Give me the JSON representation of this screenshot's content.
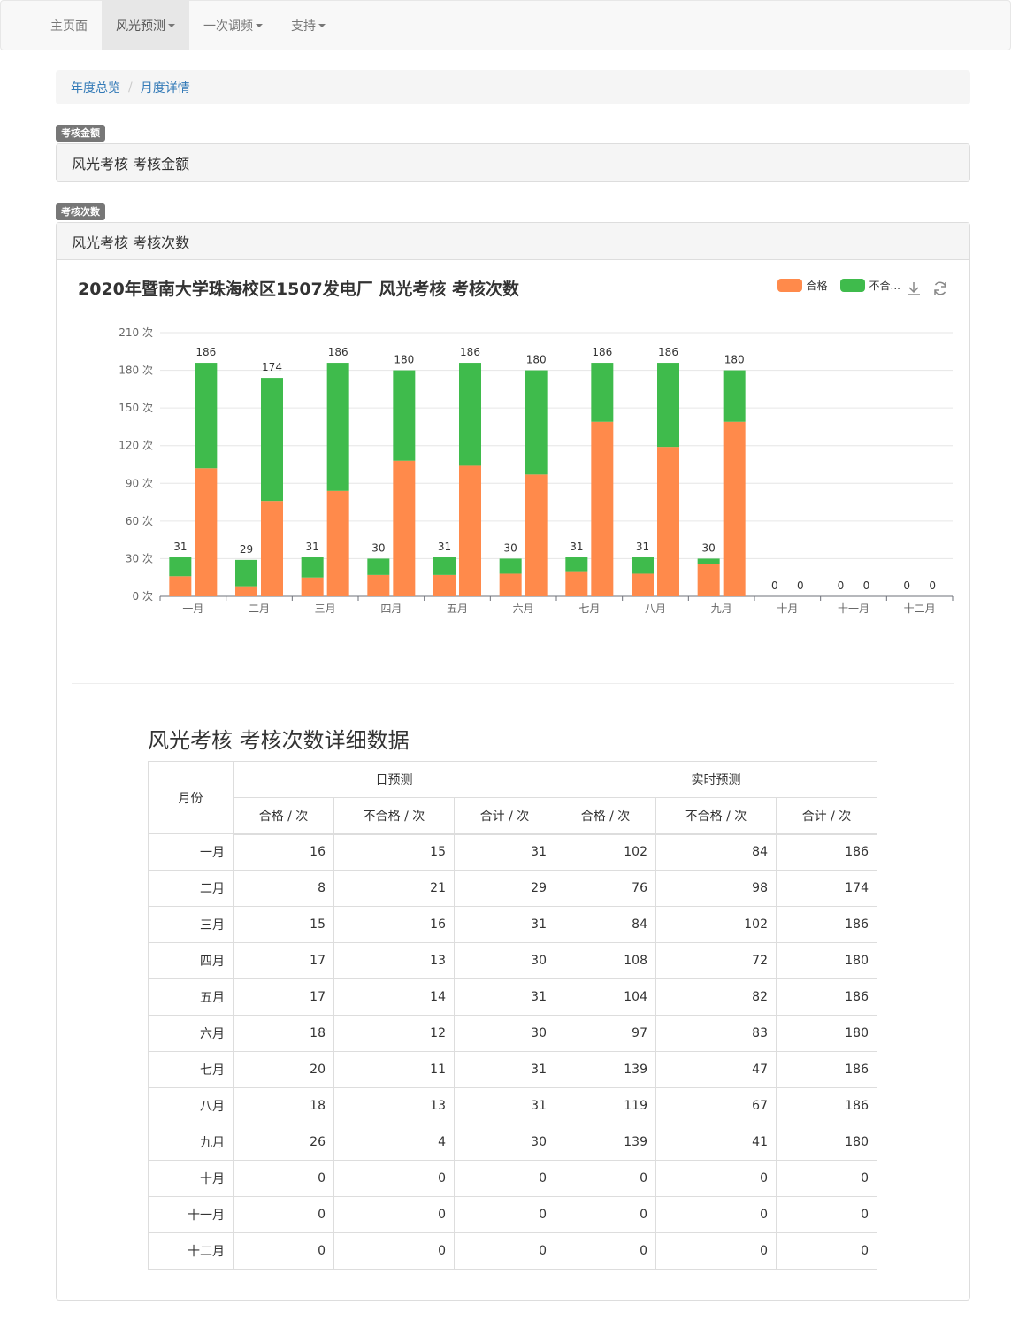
{
  "nav": {
    "items": [
      {
        "label": "主页面",
        "dropdown": false,
        "active": false
      },
      {
        "label": "风光预测",
        "dropdown": true,
        "active": true
      },
      {
        "label": "一次调频",
        "dropdown": true,
        "active": false
      },
      {
        "label": "支持",
        "dropdown": true,
        "active": false
      }
    ]
  },
  "breadcrumb": {
    "items": [
      "年度总览",
      "月度详情"
    ],
    "separator": "/"
  },
  "section_amount": {
    "badge": "考核金额",
    "heading": "风光考核 考核金额"
  },
  "section_count": {
    "badge": "考核次数",
    "heading": "风光考核 考核次数"
  },
  "chart_data": {
    "type": "bar",
    "title": "2020年暨南大学珠海校区1507发电厂 风光考核 考核次数",
    "legend": {
      "position": "top-right",
      "entries": [
        "合格",
        "不合..."
      ]
    },
    "colors": {
      "pass": "#ff8a4b",
      "fail": "#3fbb4c"
    },
    "categories": [
      "一月",
      "二月",
      "三月",
      "四月",
      "五月",
      "六月",
      "七月",
      "八月",
      "九月",
      "十月",
      "十一月",
      "十二月"
    ],
    "y_unit": "次",
    "ylim": [
      0,
      210
    ],
    "yticks": [
      0,
      30,
      60,
      90,
      120,
      150,
      180,
      210
    ],
    "grid": true,
    "stacked": true,
    "series": [
      {
        "name": "合格",
        "stack": "日预测",
        "values": [
          16,
          8,
          15,
          17,
          17,
          18,
          20,
          18,
          26,
          0,
          0,
          0
        ]
      },
      {
        "name": "不合格",
        "stack": "日预测",
        "values": [
          15,
          21,
          16,
          13,
          14,
          12,
          11,
          13,
          4,
          0,
          0,
          0
        ]
      },
      {
        "name": "合格",
        "stack": "实时预测",
        "values": [
          102,
          76,
          84,
          108,
          104,
          97,
          139,
          119,
          139,
          0,
          0,
          0
        ]
      },
      {
        "name": "不合格",
        "stack": "实时预测",
        "values": [
          84,
          98,
          102,
          72,
          82,
          83,
          47,
          67,
          41,
          0,
          0,
          0
        ]
      }
    ],
    "totals": {
      "日预测": [
        31,
        29,
        31,
        30,
        31,
        30,
        31,
        31,
        30,
        0,
        0,
        0
      ],
      "实时预测": [
        186,
        174,
        186,
        180,
        186,
        180,
        186,
        186,
        180,
        0,
        0,
        0
      ]
    }
  },
  "table": {
    "title": "风光考核 考核次数详细数据",
    "month_header": "月份",
    "group_headers": [
      "日预测",
      "实时预测"
    ],
    "sub_headers": [
      "合格 / 次",
      "不合格 / 次",
      "合计 / 次",
      "合格 / 次",
      "不合格 / 次",
      "合计 / 次"
    ],
    "rows": [
      {
        "month": "一月",
        "values": [
          16,
          15,
          31,
          102,
          84,
          186
        ]
      },
      {
        "month": "二月",
        "values": [
          8,
          21,
          29,
          76,
          98,
          174
        ]
      },
      {
        "month": "三月",
        "values": [
          15,
          16,
          31,
          84,
          102,
          186
        ]
      },
      {
        "month": "四月",
        "values": [
          17,
          13,
          30,
          108,
          72,
          180
        ]
      },
      {
        "month": "五月",
        "values": [
          17,
          14,
          31,
          104,
          82,
          186
        ]
      },
      {
        "month": "六月",
        "values": [
          18,
          12,
          30,
          97,
          83,
          180
        ]
      },
      {
        "month": "七月",
        "values": [
          20,
          11,
          31,
          139,
          47,
          186
        ]
      },
      {
        "month": "八月",
        "values": [
          18,
          13,
          31,
          119,
          67,
          186
        ]
      },
      {
        "month": "九月",
        "values": [
          26,
          4,
          30,
          139,
          41,
          180
        ]
      },
      {
        "month": "十月",
        "values": [
          0,
          0,
          0,
          0,
          0,
          0
        ]
      },
      {
        "month": "十一月",
        "values": [
          0,
          0,
          0,
          0,
          0,
          0
        ]
      },
      {
        "month": "十二月",
        "values": [
          0,
          0,
          0,
          0,
          0,
          0
        ]
      }
    ]
  }
}
